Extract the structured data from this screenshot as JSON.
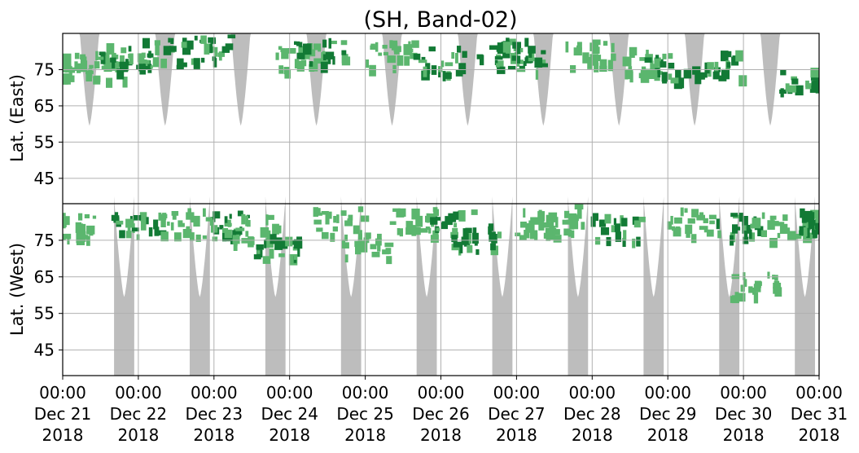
{
  "chart_data": {
    "type": "heatmap",
    "title": "(SH, Band-02)",
    "ylabel_top": "Lat. (East)",
    "ylabel_bottom": "Lat. (West)",
    "x_range": [
      "2018-12-21 00:00",
      "2018-12-31 00:00"
    ],
    "x_ticks": [
      {
        "time": "00:00",
        "date": "Dec 21",
        "year": "2018"
      },
      {
        "time": "00:00",
        "date": "Dec 22",
        "year": "2018"
      },
      {
        "time": "00:00",
        "date": "Dec 23",
        "year": "2018"
      },
      {
        "time": "00:00",
        "date": "Dec 24",
        "year": "2018"
      },
      {
        "time": "00:00",
        "date": "Dec 25",
        "year": "2018"
      },
      {
        "time": "00:00",
        "date": "Dec 26",
        "year": "2018"
      },
      {
        "time": "00:00",
        "date": "Dec 27",
        "year": "2018"
      },
      {
        "time": "00:00",
        "date": "Dec 28",
        "year": "2018"
      },
      {
        "time": "00:00",
        "date": "Dec 29",
        "year": "2018"
      },
      {
        "time": "00:00",
        "date": "Dec 30",
        "year": "2018"
      },
      {
        "time": "00:00",
        "date": "Dec 31",
        "year": "2018"
      }
    ],
    "y_ticks_east": [
      "45",
      "55",
      "65",
      "75"
    ],
    "y_ticks_west": [
      "75",
      "65",
      "55",
      "45"
    ],
    "east_lat_range": [
      38,
      85
    ],
    "west_lat_range": [
      38,
      85
    ],
    "grid": true,
    "colors": {
      "activity_strong": "#127a35",
      "activity_weak": "#5bb66e",
      "daylight": "#bdbdbd",
      "grid": "#b0b0b0",
      "divider": "#000000"
    },
    "daylight_east": [
      {
        "day": "2018-12-21",
        "center_hours": 8.5,
        "half_width_hours": 3.2,
        "min_lat": 59.5
      },
      {
        "day": "2018-12-22",
        "center_hours": 8.5,
        "half_width_hours": 3.2,
        "min_lat": 59.5
      },
      {
        "day": "2018-12-23",
        "center_hours": 8.5,
        "half_width_hours": 3.2,
        "min_lat": 59.5
      },
      {
        "day": "2018-12-24",
        "center_hours": 8.5,
        "half_width_hours": 3.2,
        "min_lat": 59.5
      },
      {
        "day": "2018-12-25",
        "center_hours": 8.5,
        "half_width_hours": 3.2,
        "min_lat": 59.5
      },
      {
        "day": "2018-12-26",
        "center_hours": 8.5,
        "half_width_hours": 3.2,
        "min_lat": 59.5
      },
      {
        "day": "2018-12-27",
        "center_hours": 8.5,
        "half_width_hours": 3.2,
        "min_lat": 59.5
      },
      {
        "day": "2018-12-28",
        "center_hours": 8.5,
        "half_width_hours": 3.2,
        "min_lat": 59.5
      },
      {
        "day": "2018-12-29",
        "center_hours": 8.5,
        "half_width_hours": 3.2,
        "min_lat": 59.5
      },
      {
        "day": "2018-12-30",
        "center_hours": 8.5,
        "half_width_hours": 3.2,
        "min_lat": 59.5
      }
    ],
    "daylight_west": [
      {
        "day": "2018-12-21",
        "center_hours": 19.5,
        "half_width_hours": 3.2,
        "min_lat": 59.5
      },
      {
        "day": "2018-12-22",
        "center_hours": 19.5,
        "half_width_hours": 3.2,
        "min_lat": 59.5
      },
      {
        "day": "2018-12-23",
        "center_hours": 19.5,
        "half_width_hours": 3.2,
        "min_lat": 59.5
      },
      {
        "day": "2018-12-24",
        "center_hours": 19.5,
        "half_width_hours": 3.2,
        "min_lat": 59.5
      },
      {
        "day": "2018-12-25",
        "center_hours": 19.5,
        "half_width_hours": 3.2,
        "min_lat": 59.5
      },
      {
        "day": "2018-12-26",
        "center_hours": 19.5,
        "half_width_hours": 3.2,
        "min_lat": 59.5
      },
      {
        "day": "2018-12-27",
        "center_hours": 19.5,
        "half_width_hours": 3.2,
        "min_lat": 59.5
      },
      {
        "day": "2018-12-28",
        "center_hours": 19.5,
        "half_width_hours": 3.2,
        "min_lat": 59.5
      },
      {
        "day": "2018-12-29",
        "center_hours": 19.5,
        "half_width_hours": 3.2,
        "min_lat": 59.5
      },
      {
        "day": "2018-12-30",
        "center_hours": 19.5,
        "half_width_hours": 3.2,
        "min_lat": 59.5
      }
    ],
    "activity": [
      {
        "time": "2018-12-21 00:00",
        "hemisphere": "east",
        "lat": 76.0,
        "intensity": "weak"
      },
      {
        "time": "2018-12-21 02:00",
        "hemisphere": "west",
        "lat": 79.0,
        "intensity": "weak"
      },
      {
        "time": "2018-12-21 10:00",
        "hemisphere": "east",
        "lat": 76.5,
        "intensity": "weak"
      },
      {
        "time": "2018-12-21 16:00",
        "hemisphere": "east",
        "lat": 78.5,
        "intensity": "strong"
      },
      {
        "time": "2018-12-21 20:00",
        "hemisphere": "west",
        "lat": 80.0,
        "intensity": "strong"
      },
      {
        "time": "2018-12-22 04:00",
        "hemisphere": "east",
        "lat": 80.0,
        "intensity": "strong"
      },
      {
        "time": "2018-12-22 10:00",
        "hemisphere": "west",
        "lat": 80.0,
        "intensity": "weak"
      },
      {
        "time": "2018-12-22 18:00",
        "hemisphere": "east",
        "lat": 81.5,
        "intensity": "strong"
      },
      {
        "time": "2018-12-23 00:00",
        "hemisphere": "west",
        "lat": 79.5,
        "intensity": "strong"
      },
      {
        "time": "2018-12-23 08:00",
        "hemisphere": "west",
        "lat": 78.5,
        "intensity": "weak"
      },
      {
        "time": "2018-12-23 16:00",
        "hemisphere": "west",
        "lat": 73.0,
        "intensity": "strong"
      },
      {
        "time": "2018-12-24 00:00",
        "hemisphere": "east",
        "lat": 78.5,
        "intensity": "weak"
      },
      {
        "time": "2018-12-24 06:00",
        "hemisphere": "east",
        "lat": 80.5,
        "intensity": "strong"
      },
      {
        "time": "2018-12-24 12:00",
        "hemisphere": "west",
        "lat": 80.5,
        "intensity": "weak"
      },
      {
        "time": "2018-12-24 20:00",
        "hemisphere": "west",
        "lat": 74.0,
        "intensity": "weak"
      },
      {
        "time": "2018-12-25 04:00",
        "hemisphere": "east",
        "lat": 79.5,
        "intensity": "weak"
      },
      {
        "time": "2018-12-25 12:00",
        "hemisphere": "west",
        "lat": 80.5,
        "intensity": "weak"
      },
      {
        "time": "2018-12-25 20:00",
        "hemisphere": "east",
        "lat": 78.0,
        "intensity": "strong"
      },
      {
        "time": "2018-12-26 00:00",
        "hemisphere": "west",
        "lat": 80.0,
        "intensity": "strong"
      },
      {
        "time": "2018-12-26 08:00",
        "hemisphere": "west",
        "lat": 76.0,
        "intensity": "strong"
      },
      {
        "time": "2018-12-26 16:00",
        "hemisphere": "east",
        "lat": 80.0,
        "intensity": "strong"
      },
      {
        "time": "2018-12-26 22:00",
        "hemisphere": "east",
        "lat": 79.0,
        "intensity": "strong"
      },
      {
        "time": "2018-12-27 04:00",
        "hemisphere": "west",
        "lat": 80.0,
        "intensity": "weak"
      },
      {
        "time": "2018-12-27 12:00",
        "hemisphere": "west",
        "lat": 81.5,
        "intensity": "weak"
      },
      {
        "time": "2018-12-27 20:00",
        "hemisphere": "east",
        "lat": 79.5,
        "intensity": "weak"
      },
      {
        "time": "2018-12-28 04:00",
        "hemisphere": "west",
        "lat": 79.0,
        "intensity": "strong"
      },
      {
        "time": "2018-12-28 14:00",
        "hemisphere": "east",
        "lat": 77.5,
        "intensity": "weak"
      },
      {
        "time": "2018-12-28 20:00",
        "hemisphere": "east",
        "lat": 75.5,
        "intensity": "strong"
      },
      {
        "time": "2018-12-29 04:00",
        "hemisphere": "west",
        "lat": 80.5,
        "intensity": "weak"
      },
      {
        "time": "2018-12-29 12:00",
        "hemisphere": "east",
        "lat": 77.0,
        "intensity": "strong"
      },
      {
        "time": "2018-12-29 20:00",
        "hemisphere": "west",
        "lat": 79.5,
        "intensity": "strong"
      },
      {
        "time": "2018-12-30 00:00",
        "hemisphere": "west",
        "lat": 63.0,
        "intensity": "weak"
      },
      {
        "time": "2018-12-30 10:00",
        "hemisphere": "west",
        "lat": 79.0,
        "intensity": "weak"
      },
      {
        "time": "2018-12-30 16:00",
        "hemisphere": "east",
        "lat": 72.5,
        "intensity": "strong"
      },
      {
        "time": "2018-12-30 22:00",
        "hemisphere": "west",
        "lat": 80.5,
        "intensity": "strong"
      }
    ]
  }
}
